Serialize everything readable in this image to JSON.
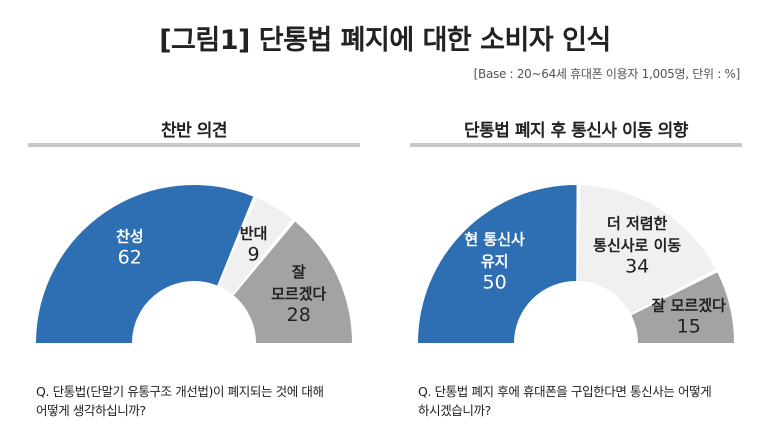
{
  "title": "[그림1] 단통법 폐지에 대한 소비자 인식",
  "base_note": "[Base : 20~64세 휴대폰 이용자 1,005명, 단위 : %]",
  "colors": {
    "blue": "#2e6fb3",
    "light": "#f0f0f0",
    "gray": "#a3a3a3",
    "rule": "#c7c7c7"
  },
  "panels": [
    {
      "title": "찬반 의견",
      "question": [
        "Q. 단통법(단말기 유통구조 개선법)이 폐지되는 것에 대해",
        "어떻게 생각하십니까?"
      ]
    },
    {
      "title": "단통법 폐지 후 통신사 이동 의향",
      "question": [
        "Q. 단통법 폐지 후에 휴대폰을 구입한다면 통신사는 어떻게",
        "하시겠습니까?"
      ]
    }
  ],
  "chart_data": [
    {
      "type": "pie",
      "variant": "semicircle-donut",
      "title": "찬반 의견",
      "slices": [
        {
          "label": [
            "찬성"
          ],
          "value": 62,
          "color": "#2e6fb3",
          "text_color": "#ffffff"
        },
        {
          "label": [
            "반대"
          ],
          "value": 9,
          "color": "#f0f0f0",
          "text_color": "#222222"
        },
        {
          "label": [
            "잘",
            "모르겠다"
          ],
          "value": 28,
          "color": "#a3a3a3",
          "text_color": "#222222"
        }
      ]
    },
    {
      "type": "pie",
      "variant": "semicircle-donut",
      "title": "단통법 폐지 후 통신사 이동 의향",
      "slices": [
        {
          "label": [
            "현 통신사",
            "유지"
          ],
          "value": 50,
          "color": "#2e6fb3",
          "text_color": "#ffffff"
        },
        {
          "label": [
            "더 저렴한",
            "통신사로 이동"
          ],
          "value": 34,
          "color": "#f0f0f0",
          "text_color": "#222222"
        },
        {
          "label": [
            "잘 모르겠다"
          ],
          "value": 15,
          "color": "#a3a3a3",
          "text_color": "#222222"
        }
      ]
    }
  ]
}
